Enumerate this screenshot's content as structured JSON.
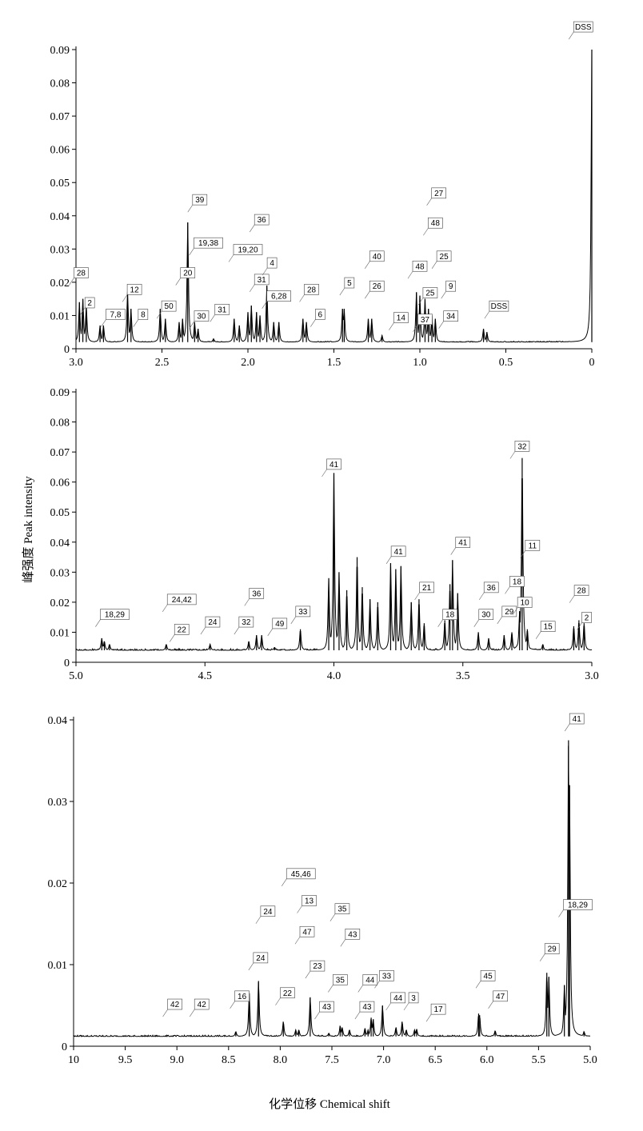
{
  "chart_data": [
    {
      "type": "line",
      "panel": "top",
      "xlim": [
        3.0,
        0.0
      ],
      "ylim": [
        0,
        0.09
      ],
      "x_ticks": [
        "3.0",
        "2.5",
        "2.0",
        "1.5",
        "1.0",
        "0.5",
        "0"
      ],
      "y_ticks": [
        "0",
        "0.01",
        "0.02",
        "0.03",
        "0.04",
        "0.05",
        "0.06",
        "0.07",
        "0.08",
        "0.09"
      ],
      "baseline": 0.002,
      "peaks": [
        {
          "x": 2.98,
          "y": 0.014
        },
        {
          "x": 2.96,
          "y": 0.015
        },
        {
          "x": 2.94,
          "y": 0.013
        },
        {
          "x": 2.86,
          "y": 0.007
        },
        {
          "x": 2.84,
          "y": 0.007
        },
        {
          "x": 2.7,
          "y": 0.017
        },
        {
          "x": 2.68,
          "y": 0.012
        },
        {
          "x": 2.51,
          "y": 0.012
        },
        {
          "x": 2.48,
          "y": 0.009
        },
        {
          "x": 2.4,
          "y": 0.008
        },
        {
          "x": 2.38,
          "y": 0.009
        },
        {
          "x": 2.35,
          "y": 0.038
        },
        {
          "x": 2.31,
          "y": 0.008
        },
        {
          "x": 2.29,
          "y": 0.006
        },
        {
          "x": 2.2,
          "y": 0.003
        },
        {
          "x": 2.08,
          "y": 0.009
        },
        {
          "x": 2.05,
          "y": 0.007
        },
        {
          "x": 2.0,
          "y": 0.011
        },
        {
          "x": 1.98,
          "y": 0.013
        },
        {
          "x": 1.95,
          "y": 0.011
        },
        {
          "x": 1.93,
          "y": 0.01
        },
        {
          "x": 1.89,
          "y": 0.019
        },
        {
          "x": 1.85,
          "y": 0.008
        },
        {
          "x": 1.82,
          "y": 0.008
        },
        {
          "x": 1.68,
          "y": 0.009
        },
        {
          "x": 1.66,
          "y": 0.008
        },
        {
          "x": 1.45,
          "y": 0.012
        },
        {
          "x": 1.44,
          "y": 0.012
        },
        {
          "x": 1.3,
          "y": 0.009
        },
        {
          "x": 1.28,
          "y": 0.009
        },
        {
          "x": 1.22,
          "y": 0.004
        },
        {
          "x": 1.02,
          "y": 0.017
        },
        {
          "x": 1.0,
          "y": 0.016
        },
        {
          "x": 0.97,
          "y": 0.015
        },
        {
          "x": 0.95,
          "y": 0.012
        },
        {
          "x": 0.93,
          "y": 0.01
        },
        {
          "x": 0.91,
          "y": 0.009
        },
        {
          "x": 0.63,
          "y": 0.006
        },
        {
          "x": 0.61,
          "y": 0.005
        },
        {
          "x": 0.0,
          "y": 0.09
        }
      ],
      "labels": [
        {
          "text": "28",
          "x": 2.97,
          "y": 0.022
        },
        {
          "text": "2",
          "x": 2.92,
          "y": 0.013
        },
        {
          "text": "7,8",
          "x": 2.77,
          "y": 0.0095
        },
        {
          "text": "12",
          "x": 2.66,
          "y": 0.017
        },
        {
          "text": "8",
          "x": 2.61,
          "y": 0.0095
        },
        {
          "text": "50",
          "x": 2.46,
          "y": 0.012
        },
        {
          "text": "20",
          "x": 2.35,
          "y": 0.022
        },
        {
          "text": "39",
          "x": 2.28,
          "y": 0.044
        },
        {
          "text": "19,38",
          "x": 2.23,
          "y": 0.031
        },
        {
          "text": "30",
          "x": 2.27,
          "y": 0.009
        },
        {
          "text": "31",
          "x": 2.15,
          "y": 0.011
        },
        {
          "text": "19,20",
          "x": 2.0,
          "y": 0.029
        },
        {
          "text": "36",
          "x": 1.92,
          "y": 0.038
        },
        {
          "text": "31",
          "x": 1.92,
          "y": 0.02
        },
        {
          "text": "4",
          "x": 1.86,
          "y": 0.025
        },
        {
          "text": "6,28",
          "x": 1.82,
          "y": 0.015
        },
        {
          "text": "28",
          "x": 1.63,
          "y": 0.017
        },
        {
          "text": "6",
          "x": 1.58,
          "y": 0.0095
        },
        {
          "text": "5",
          "x": 1.41,
          "y": 0.019
        },
        {
          "text": "40",
          "x": 1.25,
          "y": 0.027
        },
        {
          "text": "26",
          "x": 1.25,
          "y": 0.018
        },
        {
          "text": "14",
          "x": 1.11,
          "y": 0.0085
        },
        {
          "text": "48",
          "x": 1.0,
          "y": 0.024
        },
        {
          "text": "37",
          "x": 0.97,
          "y": 0.008
        },
        {
          "text": "25",
          "x": 0.94,
          "y": 0.016
        },
        {
          "text": "27",
          "x": 0.89,
          "y": 0.046
        },
        {
          "text": "48",
          "x": 0.91,
          "y": 0.037
        },
        {
          "text": "25",
          "x": 0.86,
          "y": 0.027
        },
        {
          "text": "9",
          "x": 0.82,
          "y": 0.018
        },
        {
          "text": "34",
          "x": 0.82,
          "y": 0.009
        },
        {
          "text": "DSS",
          "x": 0.54,
          "y": 0.012
        },
        {
          "text": "DSS",
          "x": 0.05,
          "y": 0.096
        }
      ]
    },
    {
      "type": "line",
      "panel": "middle",
      "xlim": [
        5.0,
        3.0
      ],
      "ylim": [
        0,
        0.09
      ],
      "x_ticks": [
        "5.0",
        "4.5",
        "4.0",
        "3.5",
        "3.0"
      ],
      "y_ticks": [
        "0",
        "0.01",
        "0.02",
        "0.03",
        "0.04",
        "0.05",
        "0.06",
        "0.07",
        "0.08",
        "0.09"
      ],
      "baseline": 0.004,
      "peaks": [
        {
          "x": 4.9,
          "y": 0.008
        },
        {
          "x": 4.89,
          "y": 0.007
        },
        {
          "x": 4.87,
          "y": 0.006
        },
        {
          "x": 4.65,
          "y": 0.006
        },
        {
          "x": 4.48,
          "y": 0.006
        },
        {
          "x": 4.33,
          "y": 0.007
        },
        {
          "x": 4.3,
          "y": 0.009
        },
        {
          "x": 4.28,
          "y": 0.009
        },
        {
          "x": 4.23,
          "y": 0.005
        },
        {
          "x": 4.13,
          "y": 0.011
        },
        {
          "x": 4.02,
          "y": 0.028
        },
        {
          "x": 4.0,
          "y": 0.063
        },
        {
          "x": 3.98,
          "y": 0.03
        },
        {
          "x": 3.95,
          "y": 0.024
        },
        {
          "x": 3.91,
          "y": 0.035
        },
        {
          "x": 3.89,
          "y": 0.025
        },
        {
          "x": 3.86,
          "y": 0.021
        },
        {
          "x": 3.83,
          "y": 0.02
        },
        {
          "x": 3.78,
          "y": 0.033
        },
        {
          "x": 3.76,
          "y": 0.031
        },
        {
          "x": 3.74,
          "y": 0.032
        },
        {
          "x": 3.7,
          "y": 0.02
        },
        {
          "x": 3.67,
          "y": 0.021
        },
        {
          "x": 3.65,
          "y": 0.013
        },
        {
          "x": 3.57,
          "y": 0.014
        },
        {
          "x": 3.55,
          "y": 0.026
        },
        {
          "x": 3.54,
          "y": 0.034
        },
        {
          "x": 3.52,
          "y": 0.023
        },
        {
          "x": 3.44,
          "y": 0.01
        },
        {
          "x": 3.4,
          "y": 0.008
        },
        {
          "x": 3.34,
          "y": 0.009
        },
        {
          "x": 3.31,
          "y": 0.01
        },
        {
          "x": 3.28,
          "y": 0.017
        },
        {
          "x": 3.27,
          "y": 0.068
        },
        {
          "x": 3.25,
          "y": 0.011
        },
        {
          "x": 3.19,
          "y": 0.006
        },
        {
          "x": 3.07,
          "y": 0.012
        },
        {
          "x": 3.05,
          "y": 0.014
        },
        {
          "x": 3.03,
          "y": 0.013
        }
      ],
      "labels": [
        {
          "text": "18,29",
          "x": 4.85,
          "y": 0.015
        },
        {
          "text": "24,42",
          "x": 4.59,
          "y": 0.02
        },
        {
          "text": "22",
          "x": 4.59,
          "y": 0.01
        },
        {
          "text": "24",
          "x": 4.47,
          "y": 0.0125
        },
        {
          "text": "32",
          "x": 4.34,
          "y": 0.0125
        },
        {
          "text": "36",
          "x": 4.3,
          "y": 0.022
        },
        {
          "text": "49",
          "x": 4.21,
          "y": 0.012
        },
        {
          "text": "33",
          "x": 4.12,
          "y": 0.016
        },
        {
          "text": "41",
          "x": 4.0,
          "y": 0.065
        },
        {
          "text": "41",
          "x": 3.75,
          "y": 0.036
        },
        {
          "text": "21",
          "x": 3.64,
          "y": 0.024
        },
        {
          "text": "18",
          "x": 3.55,
          "y": 0.015
        },
        {
          "text": "41",
          "x": 3.5,
          "y": 0.039
        },
        {
          "text": "36",
          "x": 3.39,
          "y": 0.024
        },
        {
          "text": "30",
          "x": 3.41,
          "y": 0.015
        },
        {
          "text": "29",
          "x": 3.32,
          "y": 0.016
        },
        {
          "text": "18",
          "x": 3.29,
          "y": 0.026
        },
        {
          "text": "10",
          "x": 3.26,
          "y": 0.019
        },
        {
          "text": "32",
          "x": 3.27,
          "y": 0.071
        },
        {
          "text": "11",
          "x": 3.23,
          "y": 0.038
        },
        {
          "text": "15",
          "x": 3.17,
          "y": 0.011
        },
        {
          "text": "28",
          "x": 3.04,
          "y": 0.023
        },
        {
          "text": "2",
          "x": 3.02,
          "y": 0.014
        }
      ]
    },
    {
      "type": "line",
      "panel": "bottom",
      "xlim": [
        10.0,
        5.0
      ],
      "ylim": [
        0,
        0.04
      ],
      "x_ticks": [
        "10",
        "9.5",
        "9.0",
        "8.5",
        "8.0",
        "7.5",
        "7.0",
        "6.5",
        "6.0",
        "5.5",
        "5.0"
      ],
      "y_ticks": [
        "0",
        "0.01",
        "0.02",
        "0.03",
        "0.04"
      ],
      "baseline": 0.0012,
      "peaks": [
        {
          "x": 8.43,
          "y": 0.0018
        },
        {
          "x": 8.3,
          "y": 0.0065
        },
        {
          "x": 8.21,
          "y": 0.008
        },
        {
          "x": 7.97,
          "y": 0.003
        },
        {
          "x": 7.85,
          "y": 0.002
        },
        {
          "x": 7.82,
          "y": 0.002
        },
        {
          "x": 7.71,
          "y": 0.006
        },
        {
          "x": 7.53,
          "y": 0.0016
        },
        {
          "x": 7.42,
          "y": 0.0025
        },
        {
          "x": 7.4,
          "y": 0.0023
        },
        {
          "x": 7.33,
          "y": 0.002
        },
        {
          "x": 7.18,
          "y": 0.0022
        },
        {
          "x": 7.15,
          "y": 0.002
        },
        {
          "x": 7.12,
          "y": 0.0035
        },
        {
          "x": 7.1,
          "y": 0.0033
        },
        {
          "x": 7.01,
          "y": 0.005
        },
        {
          "x": 6.88,
          "y": 0.0023
        },
        {
          "x": 6.82,
          "y": 0.003
        },
        {
          "x": 6.78,
          "y": 0.002
        },
        {
          "x": 6.7,
          "y": 0.002
        },
        {
          "x": 6.68,
          "y": 0.0021
        },
        {
          "x": 6.08,
          "y": 0.004
        },
        {
          "x": 6.07,
          "y": 0.0038
        },
        {
          "x": 5.92,
          "y": 0.0019
        },
        {
          "x": 5.42,
          "y": 0.009
        },
        {
          "x": 5.4,
          "y": 0.0085
        },
        {
          "x": 5.25,
          "y": 0.0075
        },
        {
          "x": 5.21,
          "y": 0.0375
        },
        {
          "x": 5.2,
          "y": 0.032
        },
        {
          "x": 5.06,
          "y": 0.0018
        }
      ],
      "labels": [
        {
          "text": "42",
          "x": 9.02,
          "y": 0.0048
        },
        {
          "text": "42",
          "x": 8.76,
          "y": 0.0048
        },
        {
          "text": "16",
          "x": 8.37,
          "y": 0.0058
        },
        {
          "text": "24",
          "x": 8.19,
          "y": 0.0105
        },
        {
          "text": "24",
          "x": 8.12,
          "y": 0.0162
        },
        {
          "text": "22",
          "x": 7.93,
          "y": 0.0062
        },
        {
          "text": "45,46",
          "x": 7.8,
          "y": 0.0208
        },
        {
          "text": "13",
          "x": 7.72,
          "y": 0.0175
        },
        {
          "text": "47",
          "x": 7.74,
          "y": 0.0137
        },
        {
          "text": "23",
          "x": 7.64,
          "y": 0.0095
        },
        {
          "text": "35",
          "x": 7.4,
          "y": 0.0165
        },
        {
          "text": "43",
          "x": 7.3,
          "y": 0.0134
        },
        {
          "text": "35",
          "x": 7.42,
          "y": 0.0078
        },
        {
          "text": "43",
          "x": 7.55,
          "y": 0.0045
        },
        {
          "text": "44",
          "x": 7.13,
          "y": 0.0078
        },
        {
          "text": "43",
          "x": 7.16,
          "y": 0.0045
        },
        {
          "text": "33",
          "x": 6.97,
          "y": 0.0083
        },
        {
          "text": "44",
          "x": 6.86,
          "y": 0.0056
        },
        {
          "text": "3",
          "x": 6.71,
          "y": 0.0056
        },
        {
          "text": "17",
          "x": 6.47,
          "y": 0.0042
        },
        {
          "text": "45",
          "x": 5.99,
          "y": 0.0083
        },
        {
          "text": "47",
          "x": 5.87,
          "y": 0.0058
        },
        {
          "text": "29",
          "x": 5.37,
          "y": 0.0116
        },
        {
          "text": "18,29",
          "x": 5.12,
          "y": 0.017
        },
        {
          "text": "41",
          "x": 5.13,
          "y": 0.0398
        }
      ]
    }
  ],
  "axis_titles": {
    "x": "化学位移 Chemical shift",
    "y": "峰强度 Peak intensity"
  },
  "colors": {
    "trace": "#000000",
    "label_text": "#000000",
    "label_box": "#444444"
  }
}
